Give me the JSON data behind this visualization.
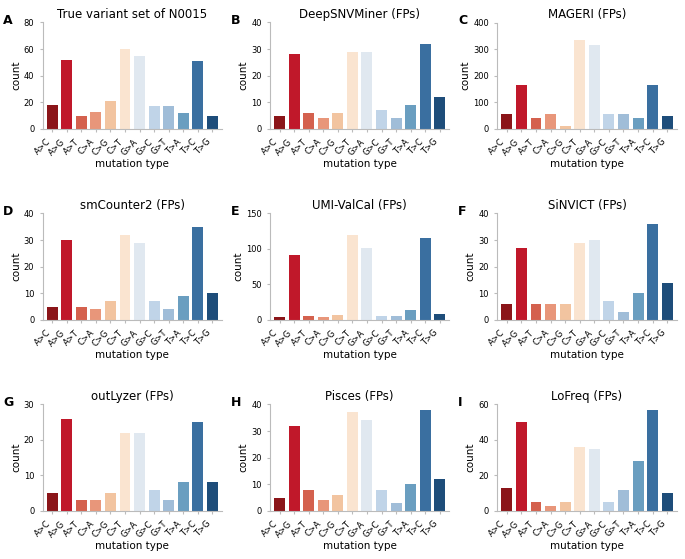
{
  "categories": [
    "A>C",
    "A>G",
    "A>T",
    "C>A",
    "C>G",
    "C>T",
    "G>A",
    "G>C",
    "G>T",
    "T>A",
    "T>C",
    "T>G"
  ],
  "bar_colors": [
    "#8B1519",
    "#C0182A",
    "#D4614E",
    "#E8967A",
    "#F2C4A0",
    "#FAE4D0",
    "#E0E8F0",
    "#C0D4E8",
    "#A0BDD8",
    "#6A9EC0",
    "#3A6FA0",
    "#1E4D7A"
  ],
  "panels": [
    {
      "label": "A",
      "title": "True variant set of N0015",
      "values": [
        18,
        52,
        10,
        13,
        21,
        60,
        55,
        17,
        17,
        12,
        51,
        10
      ],
      "ylim": [
        0,
        80
      ],
      "yticks": [
        0,
        20,
        40,
        60,
        80
      ]
    },
    {
      "label": "B",
      "title": "DeepSNVMiner (FPs)",
      "values": [
        5,
        28,
        6,
        4,
        6,
        29,
        29,
        7,
        4,
        9,
        32,
        12
      ],
      "ylim": [
        0,
        40
      ],
      "yticks": [
        0,
        10,
        20,
        30,
        40
      ]
    },
    {
      "label": "C",
      "title": "MAGERI (FPs)",
      "values": [
        55,
        165,
        40,
        55,
        10,
        335,
        315,
        55,
        55,
        40,
        165,
        50
      ],
      "ylim": [
        0,
        400
      ],
      "yticks": [
        0,
        100,
        200,
        300,
        400
      ]
    },
    {
      "label": "D",
      "title": "smCounter2 (FPs)",
      "values": [
        5,
        30,
        5,
        4,
        7,
        32,
        29,
        7,
        4,
        9,
        35,
        10
      ],
      "ylim": [
        0,
        40
      ],
      "yticks": [
        0,
        10,
        20,
        30,
        40
      ]
    },
    {
      "label": "E",
      "title": "UMI-ValCal (FPs)",
      "values": [
        4,
        92,
        5,
        4,
        7,
        120,
        102,
        5,
        5,
        14,
        115,
        9
      ],
      "ylim": [
        0,
        150
      ],
      "yticks": [
        0,
        50,
        100,
        150
      ]
    },
    {
      "label": "F",
      "title": "SiNVICT (FPs)",
      "values": [
        6,
        27,
        6,
        6,
        6,
        29,
        30,
        7,
        3,
        10,
        36,
        14
      ],
      "ylim": [
        0,
        40
      ],
      "yticks": [
        0,
        10,
        20,
        30,
        40
      ]
    },
    {
      "label": "G",
      "title": "outLyzer (FPs)",
      "values": [
        5,
        26,
        3,
        3,
        5,
        22,
        22,
        6,
        3,
        8,
        25,
        8
      ],
      "ylim": [
        0,
        30
      ],
      "yticks": [
        0,
        10,
        20,
        30
      ]
    },
    {
      "label": "H",
      "title": "Pisces (FPs)",
      "values": [
        5,
        32,
        8,
        4,
        6,
        37,
        34,
        8,
        3,
        10,
        38,
        12
      ],
      "ylim": [
        0,
        40
      ],
      "yticks": [
        0,
        10,
        20,
        30,
        40
      ]
    },
    {
      "label": "I",
      "title": "LoFreq (FPs)",
      "values": [
        13,
        50,
        5,
        3,
        5,
        36,
        35,
        5,
        12,
        28,
        57,
        10
      ],
      "ylim": [
        0,
        60
      ],
      "yticks": [
        0,
        20,
        40,
        60
      ]
    }
  ],
  "xlabel": "mutation type",
  "ylabel": "count",
  "background_color": "#FFFFFF",
  "title_fontsize": 8.5,
  "label_fontsize": 7.5,
  "tick_fontsize": 6.0,
  "panel_label_fontsize": 9
}
